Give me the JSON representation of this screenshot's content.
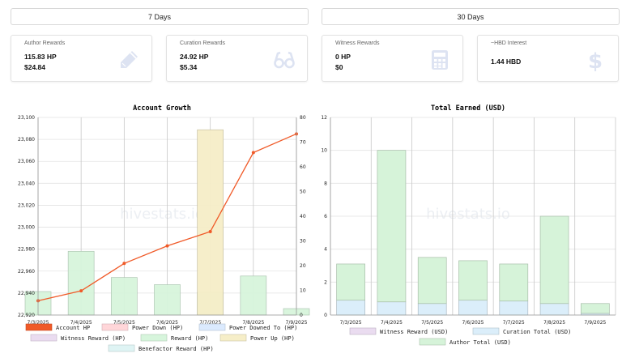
{
  "range_buttons": {
    "seven_days": "7 Days",
    "thirty_days": "30 Days"
  },
  "cards": [
    {
      "title": "Author Rewards",
      "line1": "115.83 HP",
      "line2": "$24.84",
      "icon": "pencil-icon"
    },
    {
      "title": "Curation Rewards",
      "line1": "24.92 HP",
      "line2": "$5.34",
      "icon": "glasses-icon"
    },
    {
      "title": "Witness Rewards",
      "line1": "0 HP",
      "line2": "$0",
      "icon": "calculator-icon"
    },
    {
      "title": "~HBD Interest",
      "line1": "1.44 HBD",
      "line2": "",
      "icon": "dollar-icon"
    }
  ],
  "watermark": "hivestats.io",
  "colors": {
    "account_hp": "#f05a28",
    "power_down": "#ffd6d9",
    "power_downed_to": "#dbeafe",
    "witness_reward": "#eadcf0",
    "reward": "#d7f5dc",
    "power_up": "#f6eec8",
    "benefactor_reward": "#dff4f4",
    "curation_total": "#dbeefa",
    "author_total": "#d6f3d9",
    "icon": "#dde3f2"
  },
  "chart_data": [
    {
      "type": "bar",
      "title": "Account Growth",
      "categories": [
        "7/3/2025",
        "7/4/2025",
        "7/5/2025",
        "7/6/2025",
        "7/7/2025",
        "7/8/2025",
        "7/9/2025"
      ],
      "ylim_left": [
        22920,
        23100
      ],
      "yticks_left": [
        22920,
        22940,
        22960,
        22980,
        23000,
        23020,
        23040,
        23060,
        23080,
        23100
      ],
      "ylim_right": [
        0,
        80
      ],
      "yticks_right": [
        0,
        10,
        20,
        30,
        40,
        50,
        60,
        70,
        80
      ],
      "series": [
        {
          "name": "Account HP",
          "kind": "line",
          "axis": "left",
          "values": [
            22933,
            22942,
            22967,
            22983,
            22996,
            23068,
            23085
          ]
        },
        {
          "name": "Power Down (HP)",
          "kind": "bar",
          "axis": "right",
          "values": [
            0,
            0,
            0,
            0,
            0,
            0,
            0
          ]
        },
        {
          "name": "Power Downed To (HP)",
          "kind": "bar",
          "axis": "right",
          "values": [
            0,
            0,
            0,
            0,
            0,
            0,
            0
          ]
        },
        {
          "name": "Witness Reward (HP)",
          "kind": "bar",
          "axis": "right",
          "values": [
            0,
            0,
            0,
            0,
            0,
            0,
            0
          ]
        },
        {
          "name": "Reward (HP)",
          "kind": "bar",
          "axis": "right",
          "values": [
            9.5,
            25.8,
            15.2,
            12.3,
            9.2,
            15.8,
            2.6
          ]
        },
        {
          "name": "Power Up (HP)",
          "kind": "bar",
          "axis": "right",
          "values": [
            0,
            0,
            0,
            0,
            75,
            0,
            0
          ]
        },
        {
          "name": "Benefactor Reward (HP)",
          "kind": "bar",
          "axis": "right",
          "values": [
            0,
            0,
            0,
            0,
            0,
            0,
            0
          ]
        }
      ]
    },
    {
      "type": "bar",
      "title": "Total Earned (USD)",
      "stacked": true,
      "categories": [
        "7/3/2025",
        "7/4/2025",
        "7/5/2025",
        "7/6/2025",
        "7/7/2025",
        "7/8/2025",
        "7/9/2025"
      ],
      "ylim": [
        0,
        12
      ],
      "yticks": [
        0,
        2,
        4,
        6,
        8,
        10,
        12
      ],
      "series": [
        {
          "name": "Witness Reward (USD)",
          "values": [
            0,
            0,
            0,
            0,
            0,
            0,
            0
          ]
        },
        {
          "name": "Curation Total (USD)",
          "values": [
            0.9,
            0.8,
            0.7,
            0.9,
            0.85,
            0.7,
            0.1
          ]
        },
        {
          "name": "Author Total (USD)",
          "values": [
            2.2,
            9.2,
            2.8,
            2.4,
            2.25,
            5.3,
            0.6
          ]
        }
      ]
    }
  ]
}
